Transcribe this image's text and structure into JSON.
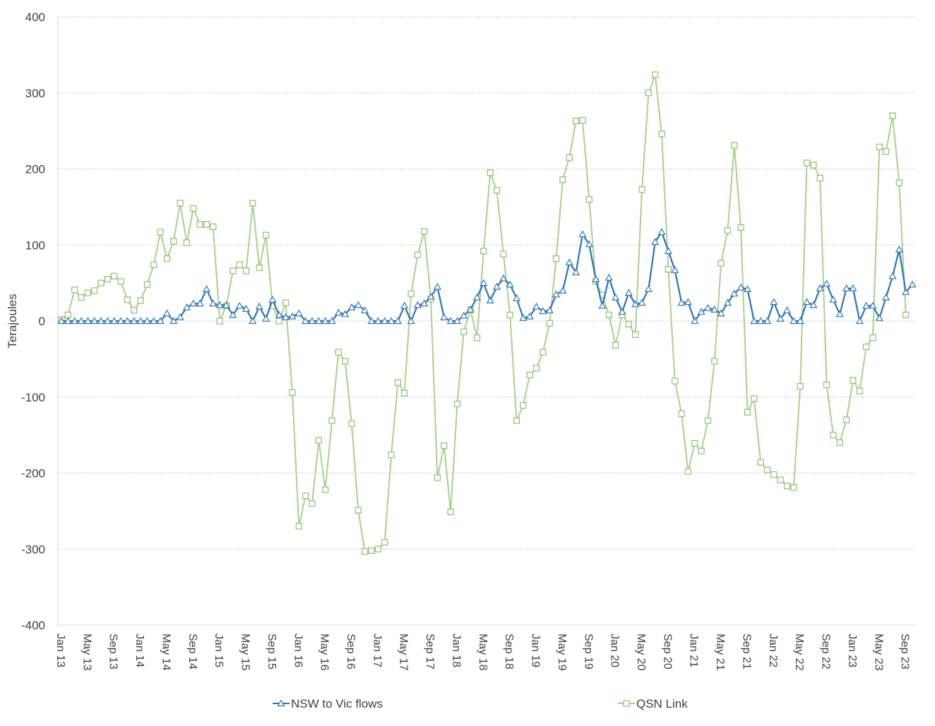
{
  "chart_data": {
    "type": "line",
    "title": "",
    "xlabel": "",
    "ylabel": "Terajoules",
    "ylim": [
      -400,
      400
    ],
    "yticks": [
      400,
      300,
      200,
      100,
      0,
      -100,
      -200,
      -300,
      -400
    ],
    "grid": true,
    "legend_position": "bottom",
    "x_tick_labels": [
      "Jan 13",
      "May 13",
      "Sep 13",
      "Jan 14",
      "May 14",
      "Sep 14",
      "Jan 15",
      "May 15",
      "Sep 15",
      "Jan 16",
      "May 16",
      "Sep 16",
      "Jan 17",
      "May 17",
      "Sep 17",
      "Jan 18",
      "May 18",
      "Sep 18",
      "Jan 19",
      "May 19",
      "Sep 19",
      "Jan 20",
      "May 20",
      "Sep 20",
      "Jan 21",
      "May 21",
      "Sep 21",
      "Jan 22",
      "May 22",
      "Sep 22",
      "Jan 23",
      "May 23",
      "Sep 23"
    ],
    "x_start": "2013-01",
    "x_end": "2023-10",
    "series": [
      {
        "name": "NSW to Vic flows",
        "color": "#2e75b6",
        "marker": "triangle",
        "values": [
          0,
          0,
          0,
          0,
          0,
          0,
          0,
          0,
          0,
          0,
          0,
          0,
          0,
          0,
          0,
          0,
          10,
          0,
          5,
          18,
          23,
          23,
          42,
          23,
          21,
          21,
          8,
          20,
          16,
          0,
          19,
          3,
          28,
          8,
          5,
          6,
          10,
          0,
          0,
          0,
          0,
          0,
          11,
          9,
          18,
          21,
          14,
          0,
          0,
          0,
          0,
          0,
          20,
          0,
          21,
          23,
          32,
          45,
          5,
          0,
          0,
          7,
          15,
          31,
          50,
          27,
          45,
          56,
          48,
          30,
          4,
          6,
          19,
          13,
          14,
          35,
          40,
          77,
          64,
          114,
          101,
          55,
          20,
          57,
          31,
          12,
          37,
          22,
          24,
          42,
          104,
          117,
          92,
          67,
          24,
          25,
          0,
          12,
          17,
          15,
          10,
          24,
          36,
          44,
          42,
          0,
          0,
          0,
          25,
          3,
          14,
          0,
          0,
          25,
          21,
          43,
          49,
          28,
          9,
          43,
          43,
          0,
          20,
          20,
          4,
          31,
          59,
          94,
          38,
          48
        ]
      },
      {
        "name": "QSN Link",
        "color": "#a9d18e",
        "marker": "square",
        "values": [
          2,
          8,
          41,
          31,
          37,
          40,
          50,
          55,
          59,
          52,
          28,
          14,
          27,
          48,
          74,
          117,
          82,
          105,
          155,
          103,
          148,
          127,
          127,
          124,
          0,
          20,
          66,
          74,
          66,
          155,
          70,
          113,
          20,
          0,
          24,
          -94,
          -270,
          -230,
          -240,
          -157,
          -222,
          -131,
          -41,
          -53,
          -135,
          -249,
          -303,
          -302,
          -300,
          -291,
          -176,
          -81,
          -95,
          36,
          87,
          118,
          29,
          -206,
          -164,
          -251,
          -109,
          -14,
          15,
          -22,
          92,
          195,
          172,
          88,
          8,
          -131,
          -111,
          -71,
          -62,
          -41,
          -3,
          82,
          186,
          215,
          263,
          264,
          160,
          52,
          34,
          8,
          -32,
          8,
          -4,
          -18,
          173,
          300,
          324,
          246,
          68,
          -79,
          -122,
          -198,
          -161,
          -171,
          -131,
          -53,
          76,
          119,
          231,
          123,
          -120,
          -102,
          -186,
          -196,
          -202,
          -209,
          -217,
          -219,
          -86,
          208,
          205,
          188,
          -84,
          -150,
          -160,
          -130,
          -78,
          -92,
          -34,
          -22,
          229,
          223,
          270,
          182,
          8
        ]
      }
    ]
  }
}
